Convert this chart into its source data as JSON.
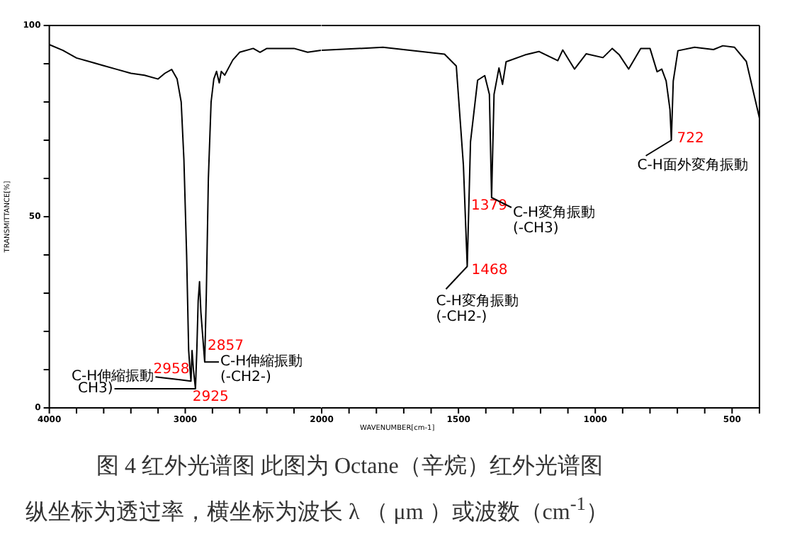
{
  "chart_data": [
    {
      "type": "line",
      "ylabel": "TRANSMITTANCE[%]",
      "xlim": [
        4000,
        2000
      ],
      "ylim": [
        0,
        100
      ],
      "xticks": [
        4000,
        {
          "value": 3800,
          "label": null
        },
        {
          "value": 3600,
          "label": null
        },
        {
          "value": 3400,
          "label": null
        },
        {
          "value": 3200,
          "label": null
        },
        3000,
        {
          "value": 2800,
          "label": null
        },
        {
          "value": 2600,
          "label": null
        },
        {
          "value": 2400,
          "label": null
        },
        {
          "value": 2200,
          "label": null
        }
      ],
      "yticks": [
        0,
        {
          "value": 10,
          "label": null
        },
        {
          "value": 20,
          "label": null
        },
        {
          "value": 30,
          "label": null
        },
        {
          "value": 40,
          "label": null
        },
        50,
        {
          "value": 60,
          "label": null
        },
        {
          "value": 70,
          "label": null
        },
        {
          "value": 80,
          "label": null
        },
        {
          "value": 90,
          "label": null
        },
        100
      ],
      "grid": false,
      "legend": false,
      "series": [
        {
          "color": "#000000",
          "x": [
            4000,
            3900,
            3800,
            3700,
            3600,
            3500,
            3400,
            3300,
            3200,
            3150,
            3100,
            3060,
            3030,
            3010,
            2990,
            2975,
            2965,
            2958,
            2950,
            2940,
            2925,
            2915,
            2905,
            2895,
            2885,
            2870,
            2857,
            2845,
            2830,
            2810,
            2790,
            2770,
            2750,
            2735,
            2710,
            2680,
            2650,
            2600,
            2500,
            2450,
            2400,
            2200,
            2100,
            2000
          ],
          "values": [
            95,
            93.5,
            91.5,
            90.5,
            89.5,
            88.5,
            87.5,
            87,
            86,
            87.5,
            88.5,
            86,
            80,
            65,
            40,
            15,
            10,
            7,
            15,
            10,
            5,
            15,
            28,
            33,
            25,
            18,
            12,
            30,
            60,
            80,
            86,
            88,
            85,
            88,
            87,
            89,
            91,
            93,
            94,
            93,
            94,
            94,
            93,
            93.5
          ]
        }
      ],
      "annotations": [
        {
          "text": "2958",
          "x": 2958,
          "y": 7
        },
        {
          "text": "2925",
          "x": 2925,
          "y": 5
        },
        {
          "text": "2857",
          "x": 2857,
          "y": 12
        },
        {
          "text": "C-H伸縮振動",
          "x": 2958,
          "y": 7
        },
        {
          "text": "CH3)",
          "x": 2925,
          "y": 5
        },
        {
          "text": "C-H伸縮振動\n(-CH2-)",
          "x": 2857,
          "y": 12
        },
        "图 4  红外光谱图    此图为 Octane（辛烷）红外光谱图",
        "纵坐标为透过率，横坐标为波长 λ （ μm ）或波数（cm$^{-1}$）"
      ]
    },
    {
      "type": "line",
      "xlabel": "WAVENUMBER[cm-1]",
      "tick_labels": "x",
      "xlim": [
        2000,
        400
      ],
      "ylim": [
        0,
        100
      ],
      "xticks": [
        2000,
        {
          "value": 1900,
          "label": null
        },
        {
          "value": 1800,
          "label": null
        },
        {
          "value": 1700,
          "label": null
        },
        {
          "value": 1600,
          "label": null
        },
        1500,
        {
          "value": 1400,
          "label": null
        },
        {
          "value": 1300,
          "label": null
        },
        {
          "value": 1200,
          "label": null
        },
        {
          "value": 1100,
          "label": null
        },
        1000,
        {
          "value": 900,
          "label": null
        },
        {
          "value": 800,
          "label": null
        },
        {
          "value": 700,
          "label": null
        },
        {
          "value": 600,
          "label": null
        },
        500,
        {
          "value": 400,
          "label": null
        }
      ],
      "grid": false,
      "legend": false,
      "series": [
        {
          "color": "#000000",
          "x": [
            2000,
            1776,
            1551,
            1508,
            1482,
            1468,
            1456,
            1430,
            1404,
            1387,
            1379,
            1370,
            1352,
            1339,
            1326,
            1257,
            1206,
            1137,
            1119,
            1076,
            1033,
            972,
            938,
            912,
            878,
            834,
            800,
            774,
            757,
            741,
            727,
            722,
            715,
            698,
            637,
            568,
            534,
            491,
            448,
            400
          ],
          "values": [
            93.5,
            94.3,
            92.5,
            89.4,
            63.5,
            37,
            69.6,
            85.7,
            86.9,
            82,
            55,
            82,
            88.9,
            84.6,
            90.5,
            92.3,
            93.2,
            90.8,
            93.6,
            88.6,
            92.6,
            91.6,
            94,
            92.3,
            88.6,
            94,
            94,
            87.9,
            88.6,
            85.5,
            78,
            70,
            85.5,
            93.4,
            94.3,
            93.7,
            94.7,
            94.3,
            90.6,
            75.8
          ]
        }
      ],
      "annotations": [
        {
          "text": "1468",
          "x": 1468,
          "y": 37
        },
        {
          "text": "C-H変角振動\n(-CH2-)",
          "x": 1468,
          "y": 37
        },
        {
          "text": "1379",
          "x": 1379,
          "y": 55
        },
        {
          "text": "C-H変角振動\n(-CH3)",
          "x": 1379,
          "y": 55
        },
        {
          "text": "722",
          "x": 722,
          "y": 70
        },
        {
          "text": "C-H面外変角振動",
          "x": 722,
          "y": 70
        }
      ]
    }
  ]
}
